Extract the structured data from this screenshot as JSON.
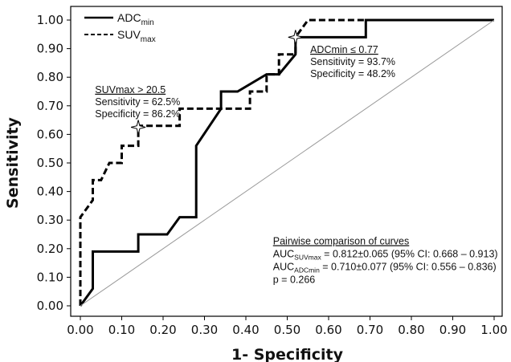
{
  "chart_data": {
    "type": "line",
    "title": "",
    "xlabel": "1- Specificity",
    "ylabel": "Sensitivity",
    "xlim": [
      0,
      1
    ],
    "ylim": [
      0,
      1
    ],
    "x_ticks": [
      "0.00",
      "0.10",
      "0.20",
      "0.30",
      "0.40",
      "0.50",
      "0.60",
      "0.70",
      "0.80",
      "0.90",
      "1.00"
    ],
    "y_ticks": [
      "0.00",
      "0.10",
      "0.20",
      "0.30",
      "0.40",
      "0.50",
      "0.60",
      "0.70",
      "0.80",
      "0.90",
      "1.00"
    ],
    "grid": false,
    "legend_position": "top-left",
    "series": [
      {
        "name_main": "ADC",
        "name_sub": "min",
        "style": "solid",
        "color": "#000000",
        "points": [
          [
            0,
            0
          ],
          [
            0.03,
            0.06
          ],
          [
            0.03,
            0.19
          ],
          [
            0.14,
            0.19
          ],
          [
            0.14,
            0.25
          ],
          [
            0.21,
            0.25
          ],
          [
            0.24,
            0.31
          ],
          [
            0.28,
            0.31
          ],
          [
            0.28,
            0.56
          ],
          [
            0.34,
            0.69
          ],
          [
            0.34,
            0.75
          ],
          [
            0.38,
            0.75
          ],
          [
            0.45,
            0.81
          ],
          [
            0.48,
            0.81
          ],
          [
            0.52,
            0.88
          ],
          [
            0.52,
            0.94
          ],
          [
            0.69,
            0.94
          ],
          [
            0.69,
            1.0
          ],
          [
            1.0,
            1.0
          ]
        ]
      },
      {
        "name_main": "SUV",
        "name_sub": "max",
        "style": "dashed",
        "color": "#000000",
        "points": [
          [
            0,
            0
          ],
          [
            0,
            0.31
          ],
          [
            0.03,
            0.37
          ],
          [
            0.03,
            0.44
          ],
          [
            0.05,
            0.44
          ],
          [
            0.07,
            0.5
          ],
          [
            0.1,
            0.5
          ],
          [
            0.1,
            0.56
          ],
          [
            0.14,
            0.56
          ],
          [
            0.14,
            0.63
          ],
          [
            0.24,
            0.63
          ],
          [
            0.24,
            0.69
          ],
          [
            0.41,
            0.69
          ],
          [
            0.41,
            0.75
          ],
          [
            0.45,
            0.75
          ],
          [
            0.45,
            0.81
          ],
          [
            0.48,
            0.81
          ],
          [
            0.48,
            0.88
          ],
          [
            0.52,
            0.88
          ],
          [
            0.52,
            0.94
          ],
          [
            0.55,
            1.0
          ],
          [
            1.0,
            1.0
          ]
        ]
      },
      {
        "name_main": "",
        "style": "reference",
        "color": "#999999",
        "points": [
          [
            0,
            0
          ],
          [
            1,
            1
          ]
        ]
      }
    ],
    "markers": [
      {
        "x": 0.14,
        "y": 0.625,
        "shape": "star"
      },
      {
        "x": 0.52,
        "y": 0.94,
        "shape": "star"
      }
    ],
    "annotations": {
      "suv": {
        "heading": "SUVmax  > 20.5",
        "sensitivity": "Sensitivity = 62.5%",
        "specificity": "Specificity = 86.2%",
        "anchor_x": 0.02,
        "anchor_y": 0.745
      },
      "adc": {
        "heading": "ADCmin ≤ 0.77",
        "sensitivity": "Sensitivity = 93.7%",
        "specificity": "Specificity = 48.2%",
        "anchor_x": 0.54,
        "anchor_y": 0.885
      },
      "pairwise": {
        "heading": "Pairwise comparison of curves",
        "line1_prefix": "AUC",
        "line1_sub": "SUVmax",
        "line1_text": " = 0.812±0.065 (95% CI: 0.668 – 0.913)",
        "line2_prefix": "AUC",
        "line2_sub": "ADCmin",
        "line2_text": " = 0.710±0.077 (95% CI: 0.556 – 0.836)",
        "line3": "p = 0.266",
        "anchor_x": 0.45,
        "anchor_y": 0.215
      }
    }
  }
}
